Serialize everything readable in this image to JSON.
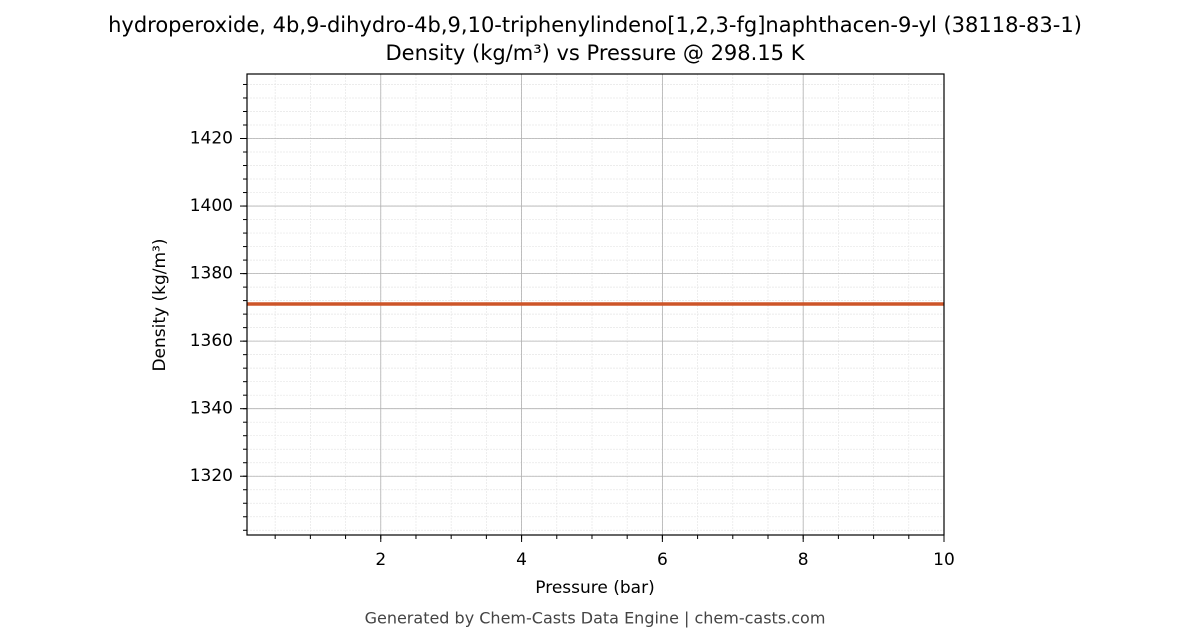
{
  "chart_data": {
    "type": "line",
    "title": "hydroperoxide, 4b,9-dihydro-4b,9,10-triphenylindeno[1,2,3-fg]naphthacen-9-yl (38118-83-1)",
    "subtitle": "Density (kg/m³) vs Pressure @ 298.15 K",
    "x_label": "Pressure (bar)",
    "y_label": "Density (kg/m³)",
    "footer": "Generated by Chem-Casts Data Engine | chem-casts.com",
    "x": [
      0.1,
      10
    ],
    "series": [
      {
        "name": "Density",
        "color": "#cd5529",
        "values": [
          1371,
          1371
        ]
      }
    ],
    "xlim": [
      0.1,
      10
    ],
    "xticks": [
      2,
      4,
      6,
      8,
      10
    ],
    "ylim": [
      1302.6,
      1439.1
    ],
    "yticks": [
      1320,
      1340,
      1360,
      1380,
      1400,
      1420
    ],
    "grid": true,
    "minor_grid": true
  }
}
